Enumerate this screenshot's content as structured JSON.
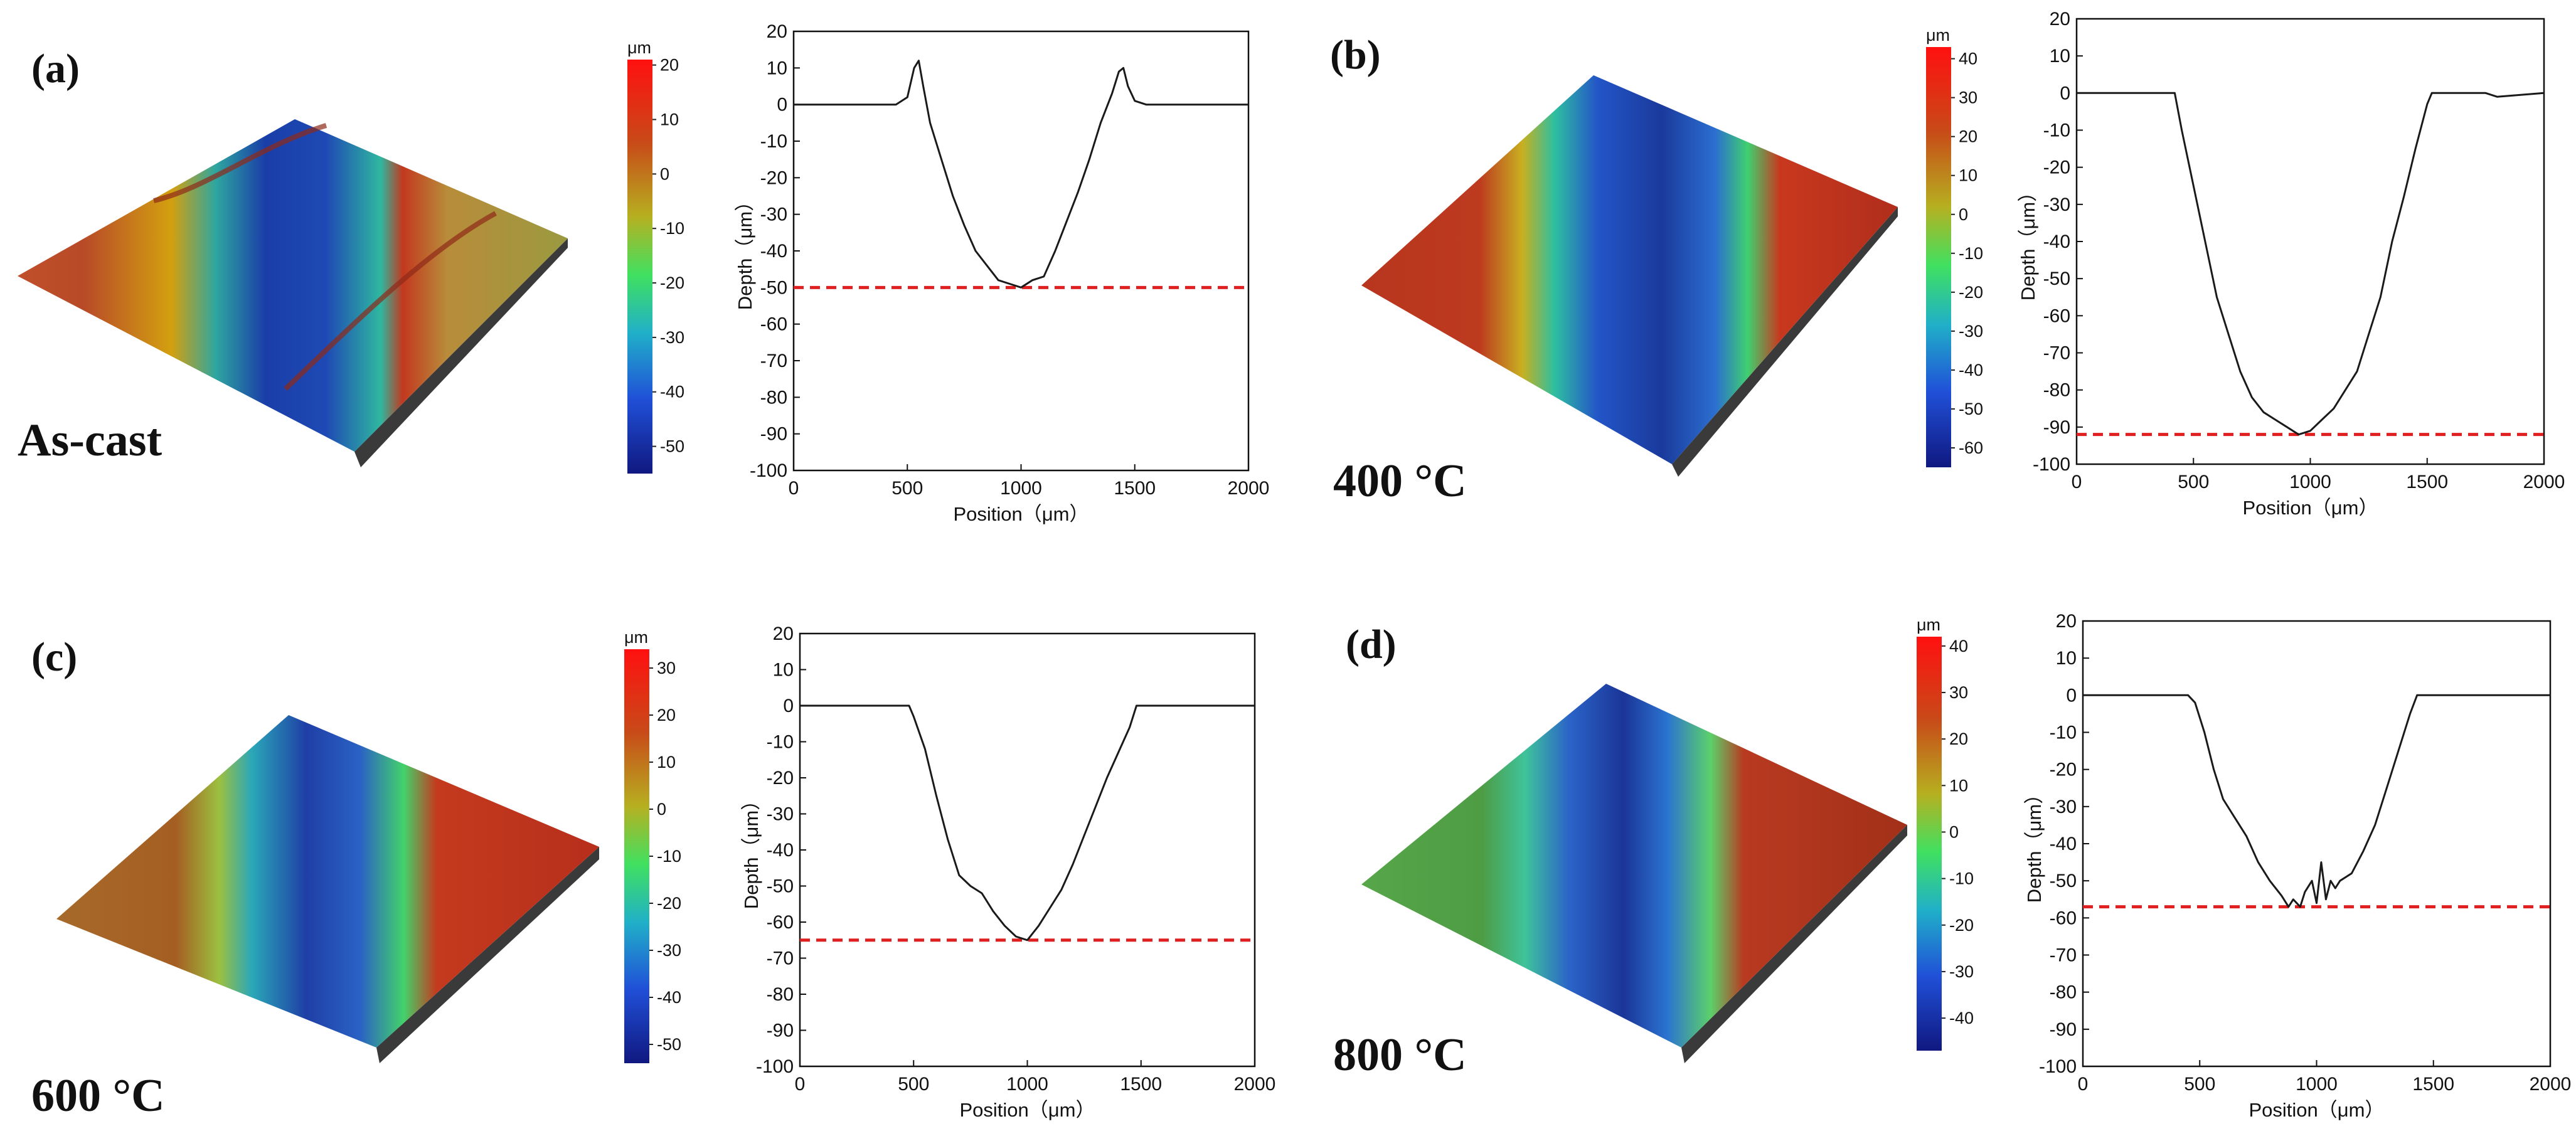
{
  "figure": {
    "panels": [
      {
        "id": "a",
        "panel_label": "(a)",
        "sample_label": "As-cast"
      },
      {
        "id": "b",
        "panel_label": "(b)",
        "sample_label": "400 °C"
      },
      {
        "id": "c",
        "panel_label": "(c)",
        "sample_label": "600 °C"
      },
      {
        "id": "d",
        "panel_label": "(d)",
        "sample_label": "800 °C"
      }
    ]
  },
  "colorbars": [
    {
      "unit": "μm",
      "ticks": [
        20,
        10,
        0,
        -10,
        -20,
        -30,
        -40,
        -50
      ],
      "tick_labels": [
        "20",
        "10",
        "0",
        "-10",
        "-20",
        "-30",
        "-40",
        "-50"
      ],
      "range": [
        -55,
        21
      ]
    },
    {
      "unit": "μm",
      "ticks": [
        40,
        30,
        20,
        10,
        0,
        -10,
        -20,
        -30,
        -40,
        -50,
        -60
      ],
      "tick_labels": [
        "40",
        "30",
        "20",
        "10",
        "0",
        "-10",
        "-20",
        "-30",
        "-40",
        "-50",
        "-60"
      ],
      "range": [
        -65,
        43
      ]
    },
    {
      "unit": "μm",
      "ticks": [
        30,
        20,
        10,
        0,
        -10,
        -20,
        -30,
        -40,
        -50
      ],
      "tick_labels": [
        "30",
        "20",
        "10",
        "0",
        "-10",
        "-20",
        "-30",
        "-40",
        "-50"
      ],
      "range": [
        -54,
        34
      ]
    },
    {
      "unit": "μm",
      "ticks": [
        40,
        30,
        20,
        10,
        0,
        -10,
        -20,
        -30,
        -40
      ],
      "tick_labels": [
        "40",
        "30",
        "20",
        "10",
        "0",
        "-10",
        "-20",
        "-30",
        "-40"
      ],
      "range": [
        -47,
        42
      ]
    }
  ],
  "chart_data": [
    {
      "type": "line",
      "panel": "(a)",
      "xlabel": "Position（μm）",
      "ylabel": "Depth（μm）",
      "xlim": [
        0,
        2000
      ],
      "ylim": [
        -100,
        20
      ],
      "xticks": [
        "0",
        "500",
        "1000",
        "1500",
        "2000"
      ],
      "yticks": [
        "20",
        "10",
        "0",
        "-10",
        "-20",
        "-30",
        "-40",
        "-50",
        "-60",
        "-70",
        "-80",
        "-90",
        "-100"
      ],
      "series": [
        {
          "name": "depth profile",
          "color": "#1a1a1a",
          "x": [
            0,
            450,
            500,
            530,
            550,
            570,
            600,
            650,
            700,
            750,
            800,
            850,
            900,
            950,
            1000,
            1050,
            1100,
            1150,
            1200,
            1250,
            1300,
            1350,
            1400,
            1430,
            1450,
            1470,
            1500,
            1550,
            2000
          ],
          "y": [
            0,
            0,
            2,
            10,
            12,
            5,
            -5,
            -15,
            -25,
            -33,
            -40,
            -44,
            -48,
            -49,
            -50,
            -48,
            -47,
            -40,
            -32,
            -24,
            -15,
            -5,
            3,
            9,
            10,
            5,
            1,
            0,
            0
          ]
        }
      ],
      "reference_line": {
        "y": -50,
        "color": "#e02020",
        "style": "dashed"
      }
    },
    {
      "type": "line",
      "panel": "(b)",
      "xlabel": "Position（μm）",
      "ylabel": "Depth（μm）",
      "xlim": [
        0,
        2000
      ],
      "ylim": [
        -100,
        20
      ],
      "xticks": [
        "0",
        "500",
        "1000",
        "1500",
        "2000"
      ],
      "yticks": [
        "20",
        "10",
        "0",
        "-10",
        "-20",
        "-30",
        "-40",
        "-50",
        "-60",
        "-70",
        "-80",
        "-90",
        "-100"
      ],
      "series": [
        {
          "name": "depth profile",
          "color": "#1a1a1a",
          "x": [
            0,
            420,
            450,
            500,
            550,
            600,
            650,
            700,
            750,
            800,
            850,
            900,
            950,
            1000,
            1050,
            1100,
            1150,
            1200,
            1250,
            1300,
            1350,
            1400,
            1450,
            1500,
            1520,
            1600,
            1750,
            1800,
            2000
          ],
          "y": [
            0,
            0,
            -10,
            -25,
            -40,
            -55,
            -65,
            -75,
            -82,
            -86,
            -88,
            -90,
            -92,
            -91,
            -88,
            -85,
            -80,
            -75,
            -65,
            -55,
            -40,
            -28,
            -15,
            -3,
            0,
            0,
            0,
            -1,
            0
          ]
        }
      ],
      "reference_line": {
        "y": -92,
        "color": "#e02020",
        "style": "dashed"
      }
    },
    {
      "type": "line",
      "panel": "(c)",
      "xlabel": "Position（μm）",
      "ylabel": "Depth（μm）",
      "xlim": [
        0,
        2000
      ],
      "ylim": [
        -100,
        20
      ],
      "xticks": [
        "0",
        "500",
        "1000",
        "1500",
        "2000"
      ],
      "yticks": [
        "20",
        "10",
        "0",
        "-10",
        "-20",
        "-30",
        "-40",
        "-50",
        "-60",
        "-70",
        "-80",
        "-90",
        "-100"
      ],
      "series": [
        {
          "name": "depth profile",
          "color": "#1a1a1a",
          "x": [
            0,
            480,
            500,
            550,
            600,
            650,
            700,
            750,
            800,
            850,
            900,
            950,
            1000,
            1050,
            1100,
            1150,
            1200,
            1250,
            1300,
            1350,
            1400,
            1450,
            1480,
            1500,
            2000
          ],
          "y": [
            0,
            0,
            -3,
            -12,
            -25,
            -37,
            -47,
            -50,
            -52,
            -57,
            -61,
            -64,
            -65,
            -61,
            -56,
            -51,
            -44,
            -36,
            -28,
            -20,
            -13,
            -6,
            0,
            0,
            0
          ]
        }
      ],
      "reference_line": {
        "y": -65,
        "color": "#e02020",
        "style": "dashed"
      }
    },
    {
      "type": "line",
      "panel": "(d)",
      "xlabel": "Position（μm）",
      "ylabel": "Depth（μm）",
      "xlim": [
        0,
        2000
      ],
      "ylim": [
        -100,
        20
      ],
      "xticks": [
        "0",
        "500",
        "1000",
        "1500",
        "2000"
      ],
      "yticks": [
        "20",
        "10",
        "0",
        "-10",
        "-20",
        "-30",
        "-40",
        "-50",
        "-60",
        "-70",
        "-80",
        "-90",
        "-100"
      ],
      "series": [
        {
          "name": "depth profile",
          "color": "#1a1a1a",
          "x": [
            0,
            450,
            480,
            520,
            560,
            600,
            650,
            700,
            750,
            800,
            850,
            880,
            900,
            930,
            950,
            980,
            1000,
            1020,
            1040,
            1060,
            1080,
            1100,
            1150,
            1200,
            1250,
            1300,
            1350,
            1400,
            1430,
            1450,
            2000
          ],
          "y": [
            0,
            0,
            -2,
            -10,
            -20,
            -28,
            -33,
            -38,
            -45,
            -50,
            -54,
            -57,
            -55,
            -57,
            -53,
            -50,
            -56,
            -45,
            -55,
            -50,
            -52,
            -50,
            -48,
            -42,
            -35,
            -25,
            -15,
            -5,
            0,
            0,
            0
          ]
        }
      ],
      "reference_line": {
        "y": -57,
        "color": "#e02020",
        "style": "dashed"
      }
    }
  ]
}
